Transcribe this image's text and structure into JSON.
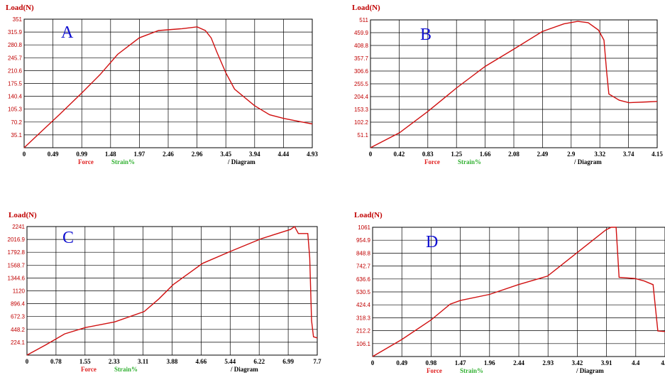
{
  "chart_data": [
    {
      "type": "line",
      "panel_label": "A",
      "ylabel": "Load(N)",
      "y_ticks": [
        "351",
        "315.9",
        "280.8",
        "245.7",
        "210.6",
        "175.5",
        "140.4",
        "105.3",
        "70.2",
        "35.1"
      ],
      "x_ticks": [
        "0",
        "0.49",
        "0.99",
        "1.48",
        "1.97",
        "2.46",
        "2.96",
        "3.45",
        "3.94",
        "4.44",
        "4.93"
      ],
      "legend": [
        "Force",
        "Strain%"
      ],
      "xlabel": "/ Diagram",
      "xlim": [
        0,
        4.93
      ],
      "ylim": [
        0,
        351
      ],
      "series": [
        {
          "values": [
            [
              0,
              0
            ],
            [
              0.3,
              45
            ],
            [
              0.6,
              90
            ],
            [
              0.99,
              150
            ],
            [
              1.3,
              200
            ],
            [
              1.6,
              255
            ],
            [
              1.97,
              300
            ],
            [
              2.3,
              320
            ],
            [
              2.7,
              325
            ],
            [
              2.96,
              330
            ],
            [
              3.1,
              320
            ],
            [
              3.2,
              300
            ],
            [
              3.3,
              260
            ],
            [
              3.45,
              205
            ],
            [
              3.6,
              160
            ],
            [
              3.94,
              115
            ],
            [
              4.2,
              90
            ],
            [
              4.44,
              80
            ],
            [
              4.7,
              72
            ],
            [
              4.93,
              65
            ]
          ]
        }
      ]
    },
    {
      "type": "line",
      "panel_label": "B",
      "ylabel": "Load(N)",
      "y_ticks": [
        "511",
        "459.9",
        "408.8",
        "357.7",
        "306.6",
        "255.5",
        "204.4",
        "153.3",
        "102.2",
        "51.1"
      ],
      "x_ticks": [
        "0",
        "0.42",
        "0.83",
        "1.25",
        "1.66",
        "2.08",
        "2.49",
        "2.9",
        "3.32",
        "3.74",
        "4.15"
      ],
      "legend": [
        "Force",
        "Strain%"
      ],
      "xlabel": "/ Diagram",
      "xlim": [
        0,
        4.15
      ],
      "ylim": [
        0,
        511
      ],
      "series": [
        {
          "values": [
            [
              0,
              0
            ],
            [
              0.42,
              60
            ],
            [
              0.83,
              145
            ],
            [
              1.25,
              240
            ],
            [
              1.66,
              325
            ],
            [
              2.08,
              395
            ],
            [
              2.49,
              465
            ],
            [
              2.8,
              495
            ],
            [
              3.0,
              505
            ],
            [
              3.15,
              500
            ],
            [
              3.3,
              470
            ],
            [
              3.38,
              430
            ],
            [
              3.42,
              300
            ],
            [
              3.45,
              215
            ],
            [
              3.6,
              190
            ],
            [
              3.74,
              180
            ],
            [
              4.0,
              183
            ],
            [
              4.15,
              185
            ]
          ]
        }
      ]
    },
    {
      "type": "line",
      "panel_label": "C",
      "ylabel": "Load(N)",
      "y_ticks": [
        "2241",
        "2016.9",
        "1792.8",
        "1568.7",
        "1344.6",
        "1120",
        "896.4",
        "672.3",
        "448.2",
        "224.1"
      ],
      "x_ticks": [
        "0",
        "0.78",
        "1.55",
        "2.33",
        "3.11",
        "3.88",
        "4.66",
        "5.44",
        "6.22",
        "6.99",
        "7.7"
      ],
      "legend": [
        "Force",
        "Strain%"
      ],
      "xlabel": "/ Diagram",
      "xlim": [
        0,
        7.7
      ],
      "ylim": [
        0,
        2241
      ],
      "series": [
        {
          "values": [
            [
              0,
              0
            ],
            [
              0.5,
              180
            ],
            [
              1.0,
              370
            ],
            [
              1.55,
              480
            ],
            [
              2.33,
              580
            ],
            [
              3.11,
              760
            ],
            [
              3.5,
              980
            ],
            [
              3.88,
              1230
            ],
            [
              4.66,
              1600
            ],
            [
              5.44,
              1820
            ],
            [
              6.22,
              2030
            ],
            [
              6.99,
              2190
            ],
            [
              7.1,
              2241
            ],
            [
              7.2,
              2120
            ],
            [
              7.45,
              2120
            ],
            [
              7.5,
              1700
            ],
            [
              7.55,
              600
            ],
            [
              7.6,
              320
            ],
            [
              7.7,
              300
            ]
          ]
        }
      ]
    },
    {
      "type": "line",
      "panel_label": "D",
      "ylabel": "Load(N)",
      "y_ticks": [
        "1061",
        "954.9",
        "848.8",
        "742.7",
        "636.6",
        "530.5",
        "424.4",
        "318.3",
        "212.2",
        "106.1"
      ],
      "x_ticks": [
        "0",
        "0.49",
        "0.98",
        "1.47",
        "1.96",
        "2.44",
        "2.93",
        "3.42",
        "3.91",
        "4.4",
        "4.9"
      ],
      "legend": [
        "Force",
        "Strain%"
      ],
      "xlabel": "/ Diagram",
      "xlim": [
        0,
        4.9
      ],
      "ylim": [
        0,
        1061
      ],
      "series": [
        {
          "values": [
            [
              0,
              0
            ],
            [
              0.49,
              140
            ],
            [
              0.98,
              300
            ],
            [
              1.3,
              430
            ],
            [
              1.47,
              460
            ],
            [
              1.96,
              510
            ],
            [
              2.44,
              590
            ],
            [
              2.93,
              660
            ],
            [
              3.42,
              850
            ],
            [
              3.91,
              1040
            ],
            [
              4.0,
              1061
            ],
            [
              4.08,
              1061
            ],
            [
              4.13,
              650
            ],
            [
              4.4,
              640
            ],
            [
              4.55,
              620
            ],
            [
              4.7,
              590
            ],
            [
              4.78,
              210
            ],
            [
              4.9,
              205
            ]
          ]
        }
      ]
    }
  ]
}
